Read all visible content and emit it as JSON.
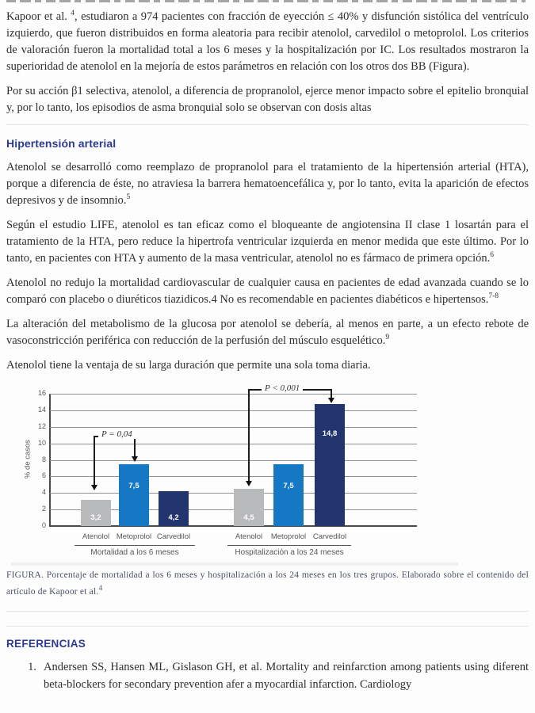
{
  "document": {
    "paragraphs": {
      "p1": {
        "a": "Kapoor et al. ",
        "sup": "4",
        "b": ", estudiaron a 974 pacientes con fracción de eyección ≤ 40% y disfunción sistólica del ventrículo izquierdo, que fueron distribuidos en forma aleatoria para recibir atenolol, carvedilol o metoprolol. Los criterios de valoración fueron la mortalidad total a los 6 meses y la hospitalización por IC. Los resultados mostraron la superioridad de atenolol en la mejoría de estos parámetros en relación con los otros dos BB (Figura)."
      },
      "p2": {
        "a": "Por su acción β1 selectiva, atenolol, a diferencia de propranolol, ejerce menor impacto sobre el epitelio bronquial y, por lo tanto, los episodios de asma bronquial solo se observan con dosis altas"
      },
      "heading": "Hipertensión arterial",
      "p3": {
        "a": "Atenolol se desarrolló como reemplazo de propranolol para el tratamiento de la hipertensión arterial (HTA), porque a diferencia de éste, no atraviesa la barrera hematoencefálica y, por lo tanto, evita la aparición de efectos depresivos y de insomnio.",
        "sup": "5"
      },
      "p4": {
        "a": "Según el estudio LIFE, atenolol es tan eficaz como el bloqueante de angiotensina II clase 1 losartán para el tratamiento de la HTA, pero reduce la hipertrofa ventricular izquierda en menor medida que este último. Por lo tanto, en pacientes con HTA y aumento de la masa ventricular, atenolol no es fármaco de primera opción.",
        "sup": "6"
      },
      "p5": {
        "a": "Atenolol no redujo la mortalidad cardiovascular de cualquier causa en pacientes de edad avanzada cuando se lo comparó con placebo o diuréticos tiazidicos.4 No es recomendable en pacientes diabéticos e hipertensos.",
        "sup": "7-8"
      },
      "p6": {
        "a": "La alteración del metabolismo de la glucosa por atenolol se debería, al menos en parte, a un efecto rebote de vasoconstricción periférica con reducción de la perfusión del músculo esquelético.",
        "sup": "9"
      },
      "p7": {
        "a": "Atenolol tiene la ventaja de su larga duración que permite una sola toma diaria."
      }
    },
    "figure_caption": {
      "a": "FIGURA. Porcentaje de mortalidad a los 6 meses y hospitalización a los 24 meses en los tres grupos. Elaborado sobre el contenido del artículo de Kapoor et al.",
      "sup": "4"
    },
    "references": {
      "heading": "REFERENCIAS",
      "items": [
        {
          "number": "1.",
          "text": "Andersen SS, Hansen ML, Gislason GH, et al. Mortality and reinfarction among patients using diferent beta-blockers for secondary prevention afer a myocardial infarction. Cardiology"
        }
      ]
    }
  },
  "chart_data": {
    "type": "bar",
    "title": "",
    "ylabel": "% de casos",
    "xlabel": "",
    "ylim": [
      0,
      16
    ],
    "yticks": [
      0,
      2,
      4,
      6,
      8,
      10,
      12,
      14,
      16
    ],
    "grid": true,
    "legend": "none",
    "categories": [
      "Atenolol",
      "Metoprolol",
      "Carvedilol"
    ],
    "groups": [
      {
        "label": "Mortalidad a los 6 meses",
        "values": [
          3.2,
          7.5,
          4.2
        ],
        "value_labels": [
          "3,2",
          "7,5",
          "4,2"
        ]
      },
      {
        "label": "Hospitalización a los 24 meses",
        "values": [
          4.5,
          7.5,
          14.8
        ],
        "value_labels": [
          "4,5",
          "7,5",
          "14,8"
        ]
      }
    ],
    "bar_colors": [
      "#b9babc",
      "#1478c4",
      "#23356e"
    ],
    "annotations": [
      {
        "text": "P = 0,04",
        "group": 0,
        "from": "Atenolol",
        "to": "Metoprolol"
      },
      {
        "text": "P < 0,001",
        "group": 1,
        "from": "Atenolol",
        "to": "Carvedilol"
      }
    ]
  },
  "colors": {
    "heading": "#2c3a92",
    "body_text": "#2f2f2f",
    "gridline": "#8f9094",
    "axis": "#4a4a4a",
    "divider": "#e6e6e8",
    "bar_gray": "#b9babc",
    "bar_blue": "#1478c4",
    "bar_navy": "#23356e"
  }
}
